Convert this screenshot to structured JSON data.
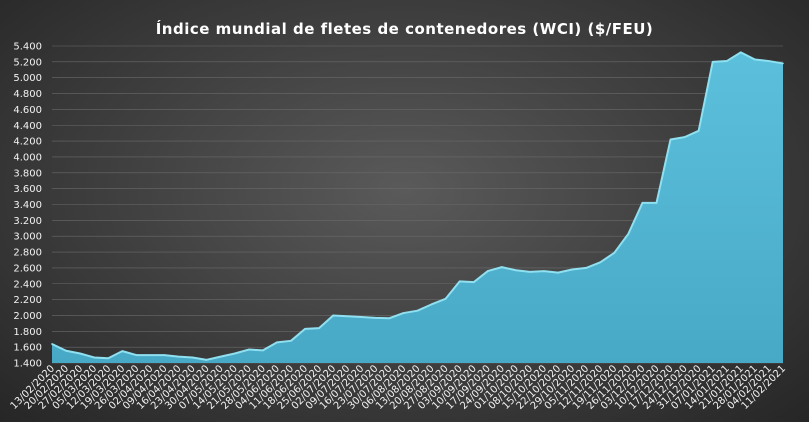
{
  "chart_data": {
    "type": "area",
    "title": "Índice mundial de fletes de contenedores (WCI) ($/FEU)",
    "xlabel": "",
    "ylabel": "",
    "ylim": [
      1400,
      5400
    ],
    "yticks": [
      1400,
      1600,
      1800,
      2000,
      2200,
      2400,
      2600,
      2800,
      3000,
      3200,
      3400,
      3600,
      3800,
      4000,
      4200,
      4400,
      4600,
      4800,
      5000,
      5200,
      5400
    ],
    "ytick_labels": [
      "1.400",
      "1.600",
      "1.800",
      "2.000",
      "2.200",
      "2.400",
      "2.600",
      "2.800",
      "3.000",
      "3.200",
      "3.400",
      "3.600",
      "3.800",
      "4.000",
      "4.200",
      "4.400",
      "4.600",
      "4.800",
      "5.000",
      "5.200",
      "5.400"
    ],
    "grid": true,
    "legend": "none",
    "area_color": "#52b6d3",
    "edge_color": "#8fe0f0",
    "categories": [
      "13/02/2020",
      "20/02/2020",
      "27/02/2020",
      "05/03/2020",
      "12/03/2020",
      "19/03/2020",
      "26/03/2020",
      "02/04/2020",
      "09/04/2020",
      "16/04/2020",
      "23/04/2020",
      "30/04/2020",
      "07/05/2020",
      "14/05/2020",
      "21/05/2020",
      "28/05/2020",
      "04/06/2020",
      "11/06/2020",
      "18/06/2020",
      "25/06/2020",
      "02/07/2020",
      "09/07/2020",
      "16/07/2020",
      "23/07/2020",
      "30/07/2020",
      "06/08/2020",
      "13/08/2020",
      "20/08/2020",
      "27/08/2020",
      "03/09/2020",
      "10/09/2020",
      "17/09/2020",
      "24/09/2020",
      "01/10/2020",
      "08/10/2020",
      "15/10/2020",
      "22/10/2020",
      "29/10/2020",
      "05/11/2020",
      "12/11/2020",
      "19/11/2020",
      "26/11/2020",
      "03/12/2020",
      "10/12/2020",
      "17/12/2020",
      "24/12/2020",
      "31/12/2020",
      "07/01/2021",
      "14/01/2021",
      "21/01/2021",
      "28/01/2021",
      "04/02/2021",
      "11/02/2021"
    ],
    "values": [
      1640,
      1555,
      1520,
      1470,
      1460,
      1550,
      1500,
      1500,
      1500,
      1480,
      1470,
      1440,
      1480,
      1520,
      1570,
      1560,
      1660,
      1680,
      1830,
      1840,
      2000,
      1990,
      1980,
      1970,
      1965,
      2030,
      2060,
      2140,
      2210,
      2430,
      2420,
      2560,
      2610,
      2570,
      2550,
      2560,
      2540,
      2580,
      2600,
      2670,
      2790,
      3030,
      3420,
      3420,
      4220,
      4250,
      4330,
      5200,
      5210,
      5320,
      5230,
      5210,
      5180
    ]
  }
}
